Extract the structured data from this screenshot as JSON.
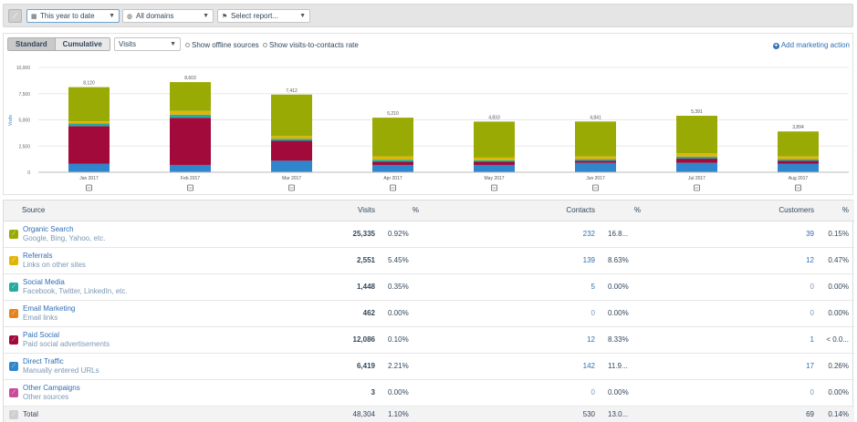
{
  "toolbar": {
    "date_range": "This year to date",
    "domains": "All domains",
    "report": "Select report..."
  },
  "chart_controls": {
    "tabs": [
      "Standard",
      "Cumulative"
    ],
    "active_tab": "Standard",
    "metric": "Visits",
    "offline_sources_label": "Show offline sources",
    "visits_to_contacts_label": "Show visits-to-contacts rate",
    "add_action_label": "Add marketing action"
  },
  "colors": {
    "organic_search": "#9aaa05",
    "referrals": "#e3b503",
    "social_media": "#27aaa0",
    "email_marketing": "#e8821b",
    "paid_social": "#a10a3a",
    "direct_traffic": "#2f86cc",
    "other_campaigns": "#c94b9b"
  },
  "chart_data": {
    "type": "bar",
    "stacked": true,
    "ylabel": "Visits",
    "ylim": [
      0,
      10000
    ],
    "yticks": [
      "10,000",
      "7,500",
      "5,000",
      "2,500",
      "0"
    ],
    "categories": [
      "Jan 2017",
      "Feb 2017",
      "Mar 2017",
      "Apr 2017",
      "May 2017",
      "Jun 2017",
      "Jul 2017",
      "Aug 2017"
    ],
    "totals": [
      "8,120",
      "8,603",
      "7,412",
      "5,210",
      "4,833",
      "4,841",
      "5,391",
      "3,894"
    ],
    "series": [
      {
        "name": "Direct Traffic",
        "color": "#2f86cc",
        "values": [
          800,
          700,
          1100,
          700,
          700,
          900,
          900,
          800
        ]
      },
      {
        "name": "Paid Social",
        "color": "#a10a3a",
        "values": [
          3600,
          4500,
          1900,
          300,
          300,
          200,
          400,
          300
        ]
      },
      {
        "name": "Email Marketing",
        "color": "#e8821b",
        "values": [
          0,
          0,
          0,
          0,
          0,
          0,
          0,
          0
        ]
      },
      {
        "name": "Social Media",
        "color": "#27aaa0",
        "values": [
          250,
          300,
          200,
          200,
          150,
          150,
          200,
          150
        ]
      },
      {
        "name": "Referrals",
        "color": "#e3b503",
        "values": [
          200,
          350,
          250,
          300,
          250,
          250,
          300,
          250
        ]
      },
      {
        "name": "Organic Search",
        "color": "#9aaa05",
        "values": [
          3270,
          2753,
          3962,
          3710,
          3433,
          3341,
          3591,
          2394
        ]
      },
      {
        "name": "Other Campaigns",
        "color": "#c94b9b",
        "values": [
          0,
          0,
          0,
          0,
          0,
          0,
          0,
          0
        ]
      }
    ]
  },
  "table": {
    "headers": {
      "source": "Source",
      "visits": "Visits",
      "visits_pct": "%",
      "contacts": "Contacts",
      "contacts_pct": "%",
      "customers": "Customers",
      "customers_pct": "%"
    },
    "rows": [
      {
        "name": "Organic Search",
        "desc": "Google, Bing, Yahoo, etc.",
        "color": "#9aaa05",
        "visits": "25,335",
        "visits_pct": "0.92%",
        "contacts": "232",
        "contacts_pct": "16.8...",
        "customers": "39",
        "customers_pct": "0.15%"
      },
      {
        "name": "Referrals",
        "desc": "Links on other sites",
        "color": "#e3b503",
        "visits": "2,551",
        "visits_pct": "5.45%",
        "contacts": "139",
        "contacts_pct": "8.63%",
        "customers": "12",
        "customers_pct": "0.47%"
      },
      {
        "name": "Social Media",
        "desc": "Facebook, Twitter, LinkedIn, etc.",
        "color": "#27aaa0",
        "visits": "1,448",
        "visits_pct": "0.35%",
        "contacts": "5",
        "contacts_pct": "0.00%",
        "customers": "0",
        "customers_pct": "0.00%"
      },
      {
        "name": "Email Marketing",
        "desc": "Email links",
        "color": "#e8821b",
        "visits": "462",
        "visits_pct": "0.00%",
        "contacts": "0",
        "contacts_pct": "0.00%",
        "customers": "0",
        "customers_pct": "0.00%"
      },
      {
        "name": "Paid Social",
        "desc": "Paid social advertisements",
        "color": "#a10a3a",
        "visits": "12,086",
        "visits_pct": "0.10%",
        "contacts": "12",
        "contacts_pct": "8.33%",
        "customers": "1",
        "customers_pct": "< 0.0..."
      },
      {
        "name": "Direct Traffic",
        "desc": "Manually entered URLs",
        "color": "#2f86cc",
        "visits": "6,419",
        "visits_pct": "2.21%",
        "contacts": "142",
        "contacts_pct": "11.9...",
        "customers": "17",
        "customers_pct": "0.26%"
      },
      {
        "name": "Other Campaigns",
        "desc": "Other sources",
        "color": "#c94b9b",
        "visits": "3",
        "visits_pct": "0.00%",
        "contacts": "0",
        "contacts_pct": "0.00%",
        "customers": "0",
        "customers_pct": "0.00%"
      }
    ],
    "total": {
      "name": "Total",
      "visits": "48,304",
      "visits_pct": "1.10%",
      "contacts": "530",
      "contacts_pct": "13.0...",
      "customers": "69",
      "customers_pct": "0.14%"
    }
  }
}
